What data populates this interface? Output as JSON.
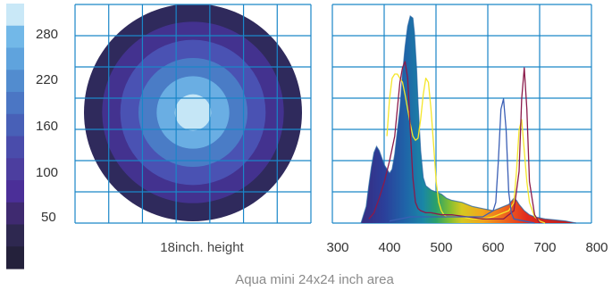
{
  "figure": {
    "caption": "Aqua mini 24x24 inch area"
  },
  "chart_data": [
    {
      "type": "heatmap",
      "subtitle": "18inch. height",
      "colorbar_ticks": [
        "280",
        "220",
        "160",
        "100",
        "50"
      ],
      "grid": true,
      "levels": [
        {
          "level": 1,
          "color": "#2f2a5c"
        },
        {
          "level": 2,
          "color": "#43328f"
        },
        {
          "level": 3,
          "color": "#4a52b3"
        },
        {
          "level": 4,
          "color": "#4a7cc6"
        },
        {
          "level": 5,
          "color": "#6aaee3"
        },
        {
          "level": 6,
          "color": "#c5e6f6"
        }
      ],
      "colorbar_colors": [
        "#c9e8f7",
        "#72b8e8",
        "#5fa3dd",
        "#528ccf",
        "#4b76c4",
        "#4860b7",
        "#4a4cab",
        "#4c3e9f",
        "#4b2f98",
        "#3f2a70",
        "#2e2850",
        "#24213b"
      ]
    },
    {
      "type": "line",
      "x_ticks": [
        300,
        400,
        500,
        600,
        700,
        800
      ],
      "xlim": [
        300,
        800
      ],
      "ylim": [
        0,
        1
      ],
      "grid": true,
      "series": [
        {
          "color": "#1f5fa0",
          "style": "filled-spectrum",
          "x": [
            345,
            355,
            360,
            365,
            370,
            375,
            380,
            390,
            400,
            405,
            410,
            420,
            425,
            430,
            435,
            440,
            445,
            448,
            452,
            455,
            460,
            465,
            470,
            480,
            490,
            500,
            510,
            520,
            540,
            560,
            580,
            600,
            610,
            620,
            630,
            640,
            645,
            650,
            660,
            670,
            680,
            700,
            720,
            740,
            760
          ],
          "y": [
            0.0,
            0.08,
            0.18,
            0.27,
            0.34,
            0.37,
            0.35,
            0.28,
            0.24,
            0.26,
            0.33,
            0.55,
            0.72,
            0.85,
            0.95,
            1.0,
            0.99,
            0.92,
            0.75,
            0.58,
            0.35,
            0.22,
            0.18,
            0.16,
            0.15,
            0.14,
            0.12,
            0.11,
            0.1,
            0.08,
            0.07,
            0.06,
            0.07,
            0.08,
            0.09,
            0.12,
            0.11,
            0.09,
            0.06,
            0.04,
            0.03,
            0.02,
            0.015,
            0.01,
            0.0
          ]
        },
        {
          "color": "#f4e62a",
          "x": [
            395,
            400,
            405,
            410,
            415,
            420,
            425,
            430,
            435,
            440,
            445,
            450,
            455,
            460,
            465,
            470,
            475,
            480,
            485,
            490,
            495,
            500,
            505,
            510,
            520,
            540,
            560,
            580,
            600,
            620,
            630,
            640,
            645,
            650,
            655,
            660,
            665,
            670,
            680,
            690,
            700
          ],
          "y": [
            0.42,
            0.6,
            0.7,
            0.72,
            0.72,
            0.7,
            0.68,
            0.62,
            0.55,
            0.48,
            0.42,
            0.4,
            0.41,
            0.5,
            0.62,
            0.7,
            0.68,
            0.55,
            0.38,
            0.2,
            0.1,
            0.06,
            0.04,
            0.03,
            0.03,
            0.03,
            0.02,
            0.02,
            0.03,
            0.05,
            0.06,
            0.1,
            0.25,
            0.45,
            0.5,
            0.35,
            0.2,
            0.1,
            0.03,
            0.01,
            0.0
          ]
        },
        {
          "color": "#8b1a4a",
          "x": [
            360,
            370,
            380,
            390,
            400,
            410,
            415,
            420,
            425,
            430,
            435,
            440,
            445,
            450,
            455,
            460,
            470,
            480,
            500,
            520,
            550,
            580,
            600,
            620,
            640,
            650,
            655,
            660,
            665,
            670,
            680,
            690
          ],
          "y": [
            0.02,
            0.05,
            0.12,
            0.2,
            0.3,
            0.42,
            0.55,
            0.68,
            0.75,
            0.78,
            0.7,
            0.45,
            0.22,
            0.1,
            0.07,
            0.06,
            0.05,
            0.05,
            0.04,
            0.04,
            0.03,
            0.02,
            0.02,
            0.02,
            0.06,
            0.25,
            0.6,
            0.75,
            0.55,
            0.2,
            0.04,
            0.0
          ]
        },
        {
          "color": "#3b5fb5",
          "x": [
            400,
            420,
            440,
            460,
            480,
            500,
            540,
            580,
            600,
            605,
            610,
            615,
            620,
            625,
            630,
            635,
            640,
            660,
            680
          ],
          "y": [
            0.01,
            0.02,
            0.03,
            0.03,
            0.03,
            0.03,
            0.03,
            0.03,
            0.06,
            0.1,
            0.3,
            0.55,
            0.6,
            0.45,
            0.15,
            0.05,
            0.02,
            0.01,
            0.0
          ]
        }
      ]
    }
  ]
}
